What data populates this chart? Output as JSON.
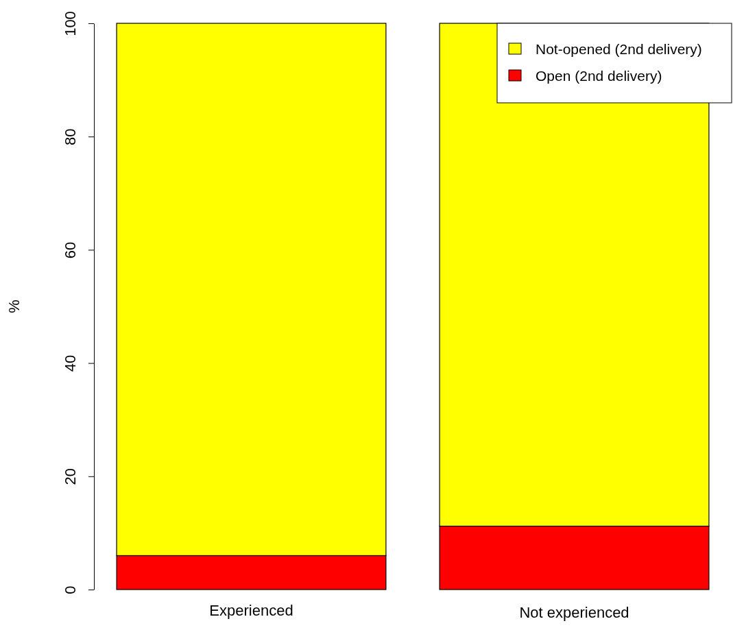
{
  "chart_data": {
    "type": "bar",
    "stacked": true,
    "ylabel": "%",
    "categories": [
      "Experienced",
      "Not experienced"
    ],
    "series": [
      {
        "name": "Open (2nd delivery)",
        "color": "#ff0000",
        "values": [
          6,
          11.2
        ]
      },
      {
        "name": "Not-opened (2nd delivery)",
        "color": "#ffff00",
        "values": [
          94,
          88.8
        ]
      }
    ],
    "ylim": [
      0,
      100
    ],
    "yticks": [
      0,
      20,
      40,
      60,
      80,
      100
    ],
    "legend": "top right",
    "grid": false
  }
}
